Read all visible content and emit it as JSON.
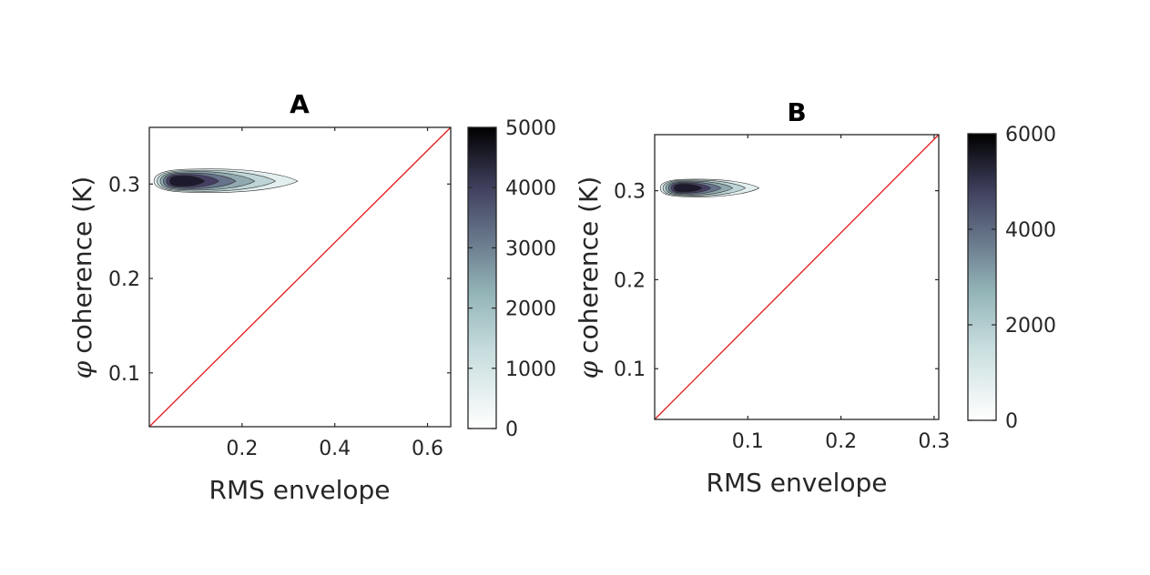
{
  "chart_data": [
    {
      "type": "contour",
      "title": "A",
      "xlabel": "RMS envelope",
      "ylabel_symbol": "φ",
      "ylabel": "coherence (K)",
      "xlim": [
        0.0,
        0.65
      ],
      "ylim": [
        0.043,
        0.36
      ],
      "xticks": [
        0.2,
        0.4,
        0.6
      ],
      "xtick_labels": [
        "0.2",
        "0.4",
        "0.6"
      ],
      "yticks": [
        0.1,
        0.2,
        0.3
      ],
      "ytick_labels": [
        "0.1",
        "0.2",
        "0.3"
      ],
      "identity_line": {
        "from": [
          0.0,
          0.043
        ],
        "to": [
          0.65,
          0.36
        ],
        "color": "#e31a1c"
      },
      "density_peak": {
        "x": 0.1,
        "y": 0.303,
        "value": 5000
      },
      "contour_extent": {
        "x_range": [
          0.01,
          0.32
        ],
        "y_range": [
          0.291,
          0.316
        ]
      },
      "colorbar": {
        "min": 0,
        "max": 5000,
        "ticks": [
          0,
          1000,
          2000,
          3000,
          4000,
          5000
        ],
        "tick_labels": [
          "0",
          "1000",
          "2000",
          "3000",
          "4000",
          "5000"
        ]
      },
      "grid": false
    },
    {
      "type": "contour",
      "title": "B",
      "xlabel": "RMS envelope",
      "ylabel_symbol": "φ",
      "ylabel": "coherence (K)",
      "xlim": [
        0.0,
        0.305
      ],
      "ylim": [
        0.043,
        0.363
      ],
      "xticks": [
        0.1,
        0.2,
        0.3
      ],
      "xtick_labels": [
        "0.1",
        "0.2",
        "0.3"
      ],
      "yticks": [
        0.1,
        0.2,
        0.3
      ],
      "ytick_labels": [
        "0.1",
        "0.2",
        "0.3"
      ],
      "identity_line": {
        "from": [
          0.0,
          0.043
        ],
        "to": [
          0.305,
          0.363
        ],
        "color": "#e31a1c"
      },
      "density_peak": {
        "x": 0.045,
        "y": 0.303,
        "value": 6000
      },
      "contour_extent": {
        "x_range": [
          0.006,
          0.112
        ],
        "y_range": [
          0.293,
          0.313
        ]
      },
      "colorbar": {
        "min": 0,
        "max": 6000,
        "ticks": [
          0,
          2000,
          4000,
          6000
        ],
        "tick_labels": [
          "0",
          "2000",
          "4000",
          "6000"
        ]
      },
      "grid": false
    }
  ]
}
